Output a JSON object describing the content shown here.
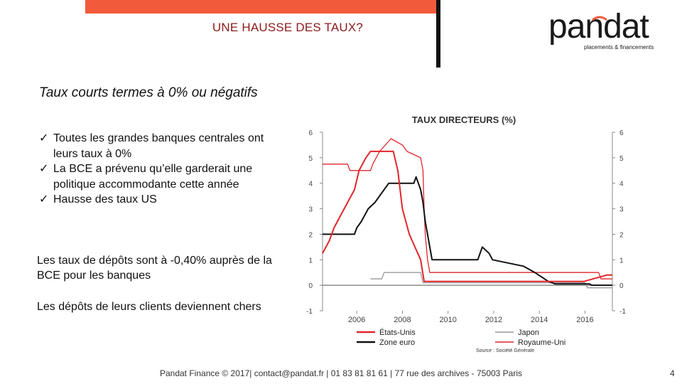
{
  "header": {
    "title": "UNE HAUSSE DES TAUX?",
    "brand_color": "#f25a3c",
    "logo": {
      "word": "pandat",
      "tagline": "placements & financements"
    }
  },
  "main": {
    "subtitle": "Taux courts termes à 0% ou négatifs",
    "bullets": [
      "Toutes les grandes banques centrales ont leurs taux à 0%",
      "La BCE a prévenu qu’elle garderait une politique accommodante cette année",
      "Hausse des taux US"
    ],
    "check_glyph": "✓",
    "paragraph1": "Les taux de dépôts sont à -0,40% auprès de la BCE pour les banques",
    "paragraph2": "Les dépôts de leurs clients deviennent chers"
  },
  "chart_data": {
    "type": "line",
    "title": "TAUX DIRECTEURS (%)",
    "xlim": [
      2004.5,
      2017.2
    ],
    "ylim": [
      -1,
      6
    ],
    "xticks": [
      "2006",
      "2008",
      "2010",
      "2012",
      "2014",
      "2016"
    ],
    "yticks": [
      "-1",
      "0",
      "1",
      "2",
      "3",
      "4",
      "5",
      "6"
    ],
    "legend_position": "bottom",
    "source": "Source : Société Générale",
    "series": [
      {
        "name": "États-Unis",
        "color": "#e0262b",
        "points": [
          [
            2004.5,
            1.25
          ],
          [
            2004.8,
            1.75
          ],
          [
            2005.0,
            2.25
          ],
          [
            2005.3,
            2.75
          ],
          [
            2005.6,
            3.25
          ],
          [
            2005.9,
            3.75
          ],
          [
            2006.1,
            4.5
          ],
          [
            2006.4,
            5.0
          ],
          [
            2006.6,
            5.25
          ],
          [
            2007.6,
            5.25
          ],
          [
            2007.8,
            4.5
          ],
          [
            2008.0,
            3.0
          ],
          [
            2008.3,
            2.0
          ],
          [
            2008.8,
            1.0
          ],
          [
            2008.95,
            0.15
          ],
          [
            2015.95,
            0.15
          ],
          [
            2016.95,
            0.4
          ],
          [
            2017.2,
            0.4
          ]
        ]
      },
      {
        "name": "Zone euro",
        "color": "#111111",
        "points": [
          [
            2004.5,
            2.0
          ],
          [
            2005.9,
            2.0
          ],
          [
            2006.0,
            2.25
          ],
          [
            2006.2,
            2.5
          ],
          [
            2006.5,
            3.0
          ],
          [
            2006.8,
            3.25
          ],
          [
            2007.0,
            3.5
          ],
          [
            2007.4,
            4.0
          ],
          [
            2008.5,
            4.0
          ],
          [
            2008.6,
            4.25
          ],
          [
            2008.8,
            3.75
          ],
          [
            2008.9,
            3.25
          ],
          [
            2009.0,
            2.5
          ],
          [
            2009.1,
            2.0
          ],
          [
            2009.2,
            1.5
          ],
          [
            2009.3,
            1.0
          ],
          [
            2011.3,
            1.0
          ],
          [
            2011.5,
            1.5
          ],
          [
            2011.8,
            1.25
          ],
          [
            2011.95,
            1.0
          ],
          [
            2013.3,
            0.75
          ],
          [
            2013.8,
            0.5
          ],
          [
            2014.4,
            0.15
          ],
          [
            2014.7,
            0.05
          ],
          [
            2016.2,
            0.05
          ],
          [
            2016.3,
            0.0
          ],
          [
            2017.2,
            0.0
          ]
        ]
      },
      {
        "name": "Japon",
        "color": "#999999",
        "points": [
          [
            2006.6,
            0.25
          ],
          [
            2007.1,
            0.25
          ],
          [
            2007.2,
            0.5
          ],
          [
            2008.8,
            0.5
          ],
          [
            2008.9,
            0.1
          ],
          [
            2016.0,
            0.1
          ],
          [
            2016.1,
            -0.1
          ],
          [
            2017.2,
            -0.1
          ]
        ]
      },
      {
        "name": "Royaume-Uni",
        "color": "#e0262b",
        "points": [
          [
            2004.5,
            4.75
          ],
          [
            2005.6,
            4.75
          ],
          [
            2005.7,
            4.5
          ],
          [
            2006.6,
            4.5
          ],
          [
            2006.7,
            4.75
          ],
          [
            2007.0,
            5.25
          ],
          [
            2007.5,
            5.75
          ],
          [
            2008.0,
            5.5
          ],
          [
            2008.2,
            5.25
          ],
          [
            2008.8,
            5.0
          ],
          [
            2008.9,
            4.5
          ],
          [
            2008.95,
            3.0
          ],
          [
            2009.0,
            2.0
          ],
          [
            2009.1,
            1.0
          ],
          [
            2009.2,
            0.5
          ],
          [
            2016.6,
            0.5
          ],
          [
            2016.7,
            0.25
          ],
          [
            2017.2,
            0.25
          ]
        ]
      }
    ]
  },
  "footer": {
    "text": "Pandat Finance © 2017| contact@pandat.fr | 01 83 81 81 61 | 77 rue des archives - 75003 Paris",
    "page": "4"
  }
}
